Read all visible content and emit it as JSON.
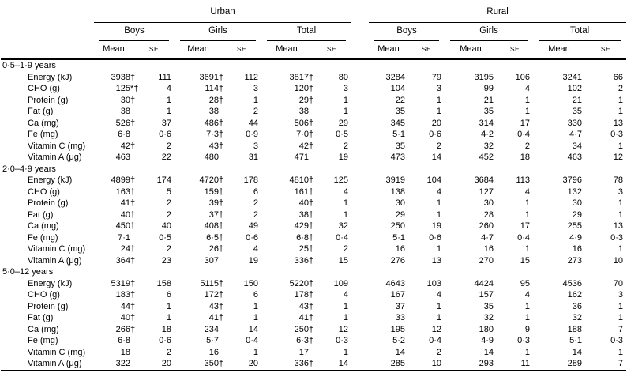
{
  "table": {
    "regions": [
      {
        "label": "Urban"
      },
      {
        "label": "Rural"
      }
    ],
    "subgroups": [
      "Boys",
      "Girls",
      "Total",
      "Boys",
      "Girls",
      "Total"
    ],
    "mean_label": "Mean",
    "se_label": "SE",
    "age_groups": [
      {
        "label": "0·5–1·9 years",
        "rows": [
          {
            "label": "Energy (kJ)",
            "values": [
              "3938†",
              "111",
              "3691†",
              "112",
              "3817†",
              "80",
              "3284",
              "79",
              "3195",
              "106",
              "3241",
              "66"
            ]
          },
          {
            "label": "CHO (g)",
            "values": [
              "125*†",
              "4",
              "114†",
              "3",
              "120†",
              "3",
              "104",
              "3",
              "99",
              "4",
              "102",
              "2"
            ]
          },
          {
            "label": "Protein (g)",
            "values": [
              "30†",
              "1",
              "28†",
              "1",
              "29†",
              "1",
              "22",
              "1",
              "21",
              "1",
              "21",
              "1"
            ]
          },
          {
            "label": "Fat (g)",
            "values": [
              "38",
              "1",
              "38",
              "2",
              "38",
              "1",
              "35",
              "1",
              "35",
              "1",
              "35",
              "1"
            ]
          },
          {
            "label": "Ca (mg)",
            "values": [
              "526†",
              "37",
              "486†",
              "44",
              "506†",
              "29",
              "345",
              "20",
              "314",
              "17",
              "330",
              "13"
            ]
          },
          {
            "label": "Fe (mg)",
            "values": [
              "6·8",
              "0·6",
              "7·3†",
              "0·9",
              "7·0†",
              "0·5",
              "5·1",
              "0·6",
              "4·2",
              "0·4",
              "4·7",
              "0·3"
            ]
          },
          {
            "label": "Vitamin C (mg)",
            "values": [
              "42†",
              "2",
              "43†",
              "3",
              "42†",
              "2",
              "35",
              "2",
              "32",
              "2",
              "34",
              "1"
            ]
          },
          {
            "label": "Vitamin A (μg)",
            "values": [
              "463",
              "22",
              "480",
              "31",
              "471",
              "19",
              "473",
              "14",
              "452",
              "18",
              "463",
              "12"
            ]
          }
        ]
      },
      {
        "label": "2·0–4·9 years",
        "rows": [
          {
            "label": "Energy (kJ)",
            "values": [
              "4899†",
              "174",
              "4720†",
              "178",
              "4810†",
              "125",
              "3919",
              "104",
              "3684",
              "113",
              "3796",
              "78"
            ]
          },
          {
            "label": "CHO (g)",
            "values": [
              "163†",
              "5",
              "159†",
              "6",
              "161†",
              "4",
              "138",
              "4",
              "127",
              "4",
              "132",
              "3"
            ]
          },
          {
            "label": "Protein (g)",
            "values": [
              "41†",
              "2",
              "39†",
              "2",
              "40†",
              "1",
              "30",
              "1",
              "30",
              "1",
              "30",
              "1"
            ]
          },
          {
            "label": "Fat (g)",
            "values": [
              "40†",
              "2",
              "37†",
              "2",
              "38†",
              "1",
              "29",
              "1",
              "28",
              "1",
              "29",
              "1"
            ]
          },
          {
            "label": "Ca (mg)",
            "values": [
              "450†",
              "40",
              "408†",
              "49",
              "429†",
              "32",
              "250",
              "19",
              "260",
              "17",
              "255",
              "13"
            ]
          },
          {
            "label": "Fe (mg)",
            "values": [
              "7·1",
              "0·5",
              "6·5†",
              "0·6",
              "6·8†",
              "0·4",
              "5·1",
              "0·6",
              "4·7",
              "0·4",
              "4·9",
              "0·3"
            ]
          },
          {
            "label": "Vitamin C (mg)",
            "values": [
              "24†",
              "2",
              "26†",
              "4",
              "25†",
              "2",
              "16",
              "1",
              "16",
              "1",
              "16",
              "1"
            ]
          },
          {
            "label": "Vitamin A (μg)",
            "values": [
              "364†",
              "23",
              "307",
              "19",
              "336†",
              "15",
              "276",
              "13",
              "270",
              "15",
              "273",
              "10"
            ]
          }
        ]
      },
      {
        "label": "5·0–12 years",
        "rows": [
          {
            "label": "Energy (kJ)",
            "values": [
              "5319†",
              "158",
              "5115†",
              "150",
              "5220†",
              "109",
              "4643",
              "103",
              "4424",
              "95",
              "4536",
              "70"
            ]
          },
          {
            "label": "CHO (g)",
            "values": [
              "183†",
              "6",
              "172†",
              "6",
              "178†",
              "4",
              "167",
              "4",
              "157",
              "4",
              "162",
              "3"
            ]
          },
          {
            "label": "Protein (g)",
            "values": [
              "44†",
              "1",
              "43†",
              "1",
              "43†",
              "1",
              "37",
              "1",
              "35",
              "1",
              "36",
              "1"
            ]
          },
          {
            "label": "Fat (g)",
            "values": [
              "40†",
              "1",
              "41†",
              "1",
              "41†",
              "1",
              "33",
              "1",
              "32",
              "1",
              "32",
              "1"
            ]
          },
          {
            "label": "Ca (mg)",
            "values": [
              "266†",
              "18",
              "234",
              "14",
              "250†",
              "12",
              "195",
              "12",
              "180",
              "9",
              "188",
              "7"
            ]
          },
          {
            "label": "Fe (mg)",
            "values": [
              "6·8",
              "0·6",
              "5·7",
              "0·4",
              "6·3†",
              "0·3",
              "5·2",
              "0·4",
              "4·9",
              "0·3",
              "5·1",
              "0·3"
            ]
          },
          {
            "label": "Vitamin C (mg)",
            "values": [
              "18",
              "2",
              "16",
              "1",
              "17",
              "1",
              "14",
              "2",
              "14",
              "1",
              "14",
              "1"
            ]
          },
          {
            "label": "Vitamin A (μg)",
            "values": [
              "322",
              "20",
              "350†",
              "20",
              "336†",
              "14",
              "285",
              "10",
              "293",
              "11",
              "289",
              "7"
            ]
          }
        ]
      }
    ]
  }
}
